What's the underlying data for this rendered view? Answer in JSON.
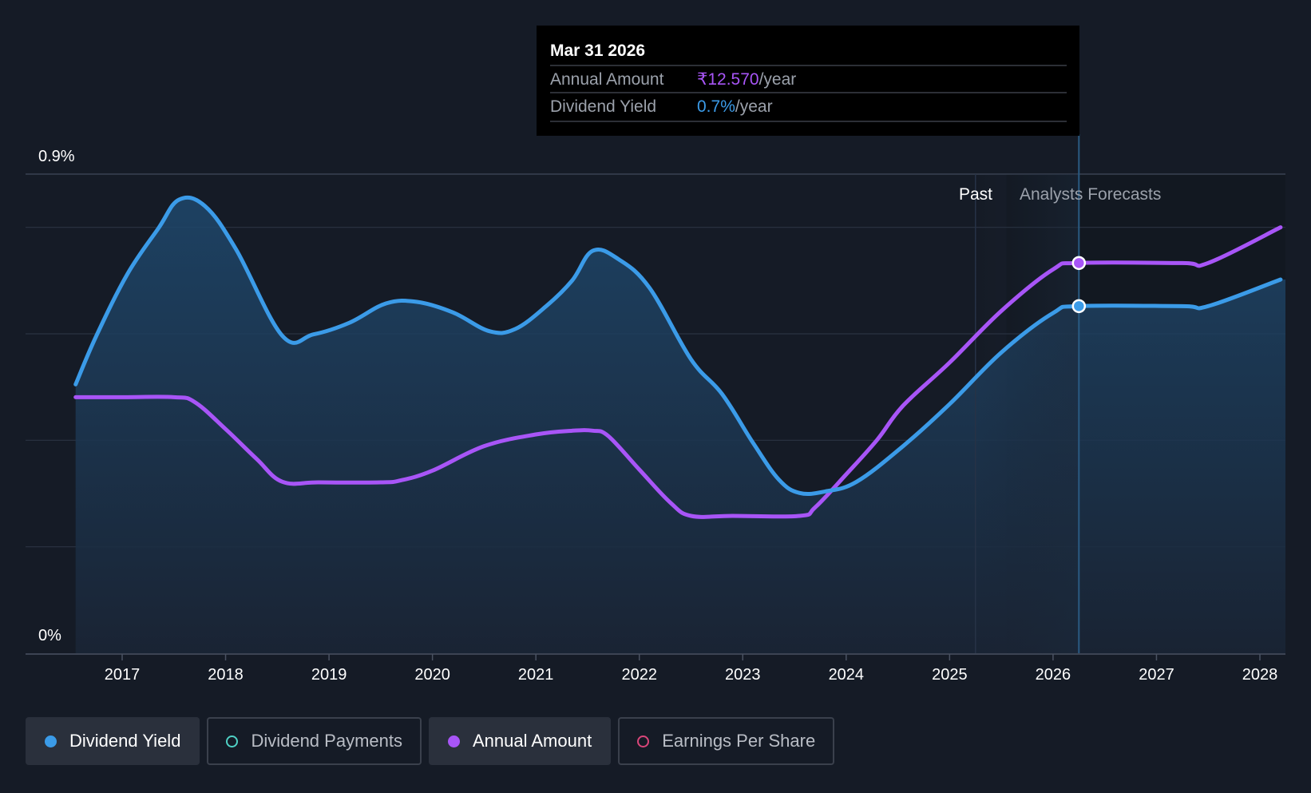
{
  "tooltip": {
    "date": "Mar 31 2026",
    "rows": [
      {
        "label": "Annual Amount",
        "value": "₹12.570",
        "unit": "/year",
        "color": "#a855f7"
      },
      {
        "label": "Dividend Yield",
        "value": "0.7%",
        "unit": "/year",
        "color": "#3b9be8"
      }
    ]
  },
  "regions": {
    "past_label": "Past",
    "forecast_label": "Analysts Forecasts"
  },
  "legend": [
    {
      "label": "Dividend Yield",
      "color": "#3b9be8",
      "active": true,
      "filled": true
    },
    {
      "label": "Dividend Payments",
      "color": "#4fd1c5",
      "active": false,
      "filled": false
    },
    {
      "label": "Annual Amount",
      "color": "#a855f7",
      "active": true,
      "filled": true
    },
    {
      "label": "Earnings Per Share",
      "color": "#d9467a",
      "active": false,
      "filled": false
    }
  ],
  "chart_data": {
    "type": "line",
    "y_tick_labels": [
      "0%",
      "0.9%"
    ],
    "ylim": [
      0,
      0.9
    ],
    "xlim": [
      2016.4,
      2028.2
    ],
    "x_ticks": [
      2017,
      2018,
      2019,
      2020,
      2021,
      2022,
      2023,
      2024,
      2025,
      2026,
      2027,
      2028
    ],
    "past_forecast_boundary": 2025.55,
    "highlight_x": 2026.25,
    "colors": {
      "dividend_yield": "#3b9be8",
      "annual_amount": "#a855f7",
      "background": "#151b26",
      "tooltip_bg": "#000000",
      "grid": "#2b3342"
    },
    "series": [
      {
        "name": "Dividend Yield",
        "key": "dividend_yield",
        "x": [
          2016.55,
          2016.75,
          2017.05,
          2017.35,
          2017.55,
          2017.8,
          2018.1,
          2018.55,
          2018.85,
          2019.2,
          2019.55,
          2019.85,
          2020.2,
          2020.55,
          2020.8,
          2021.1,
          2021.35,
          2021.55,
          2021.8,
          2022.1,
          2022.5,
          2022.8,
          2023.1,
          2023.35,
          2023.55,
          2023.8,
          2024.1,
          2024.55,
          2025.0,
          2025.5,
          2026.0,
          2026.25,
          2027.25,
          2027.5,
          2028.2
        ],
        "y": [
          0.505,
          0.596,
          0.712,
          0.798,
          0.852,
          0.84,
          0.759,
          0.596,
          0.599,
          0.621,
          0.657,
          0.66,
          0.64,
          0.605,
          0.609,
          0.652,
          0.7,
          0.756,
          0.74,
          0.686,
          0.552,
          0.487,
          0.395,
          0.326,
          0.301,
          0.304,
          0.322,
          0.389,
          0.468,
          0.565,
          0.639,
          0.652,
          0.652,
          0.652,
          0.702
        ]
      },
      {
        "name": "Annual Amount",
        "key": "annual_amount",
        "x": [
          2016.55,
          2017.0,
          2017.5,
          2017.7,
          2018.0,
          2018.3,
          2018.55,
          2018.9,
          2019.5,
          2019.7,
          2020.0,
          2020.5,
          2021.0,
          2021.35,
          2021.55,
          2021.7,
          2022.0,
          2022.3,
          2022.5,
          2022.9,
          2023.55,
          2023.7,
          2024.0,
          2024.3,
          2024.55,
          2025.0,
          2025.5,
          2026.0,
          2026.25,
          2027.25,
          2027.5,
          2028.2
        ],
        "y": [
          0.481,
          0.481,
          0.481,
          0.472,
          0.421,
          0.365,
          0.322,
          0.321,
          0.321,
          0.325,
          0.343,
          0.389,
          0.411,
          0.418,
          0.418,
          0.408,
          0.345,
          0.283,
          0.258,
          0.258,
          0.258,
          0.274,
          0.336,
          0.401,
          0.465,
          0.546,
          0.643,
          0.721,
          0.733,
          0.733,
          0.733,
          0.8
        ]
      }
    ]
  }
}
